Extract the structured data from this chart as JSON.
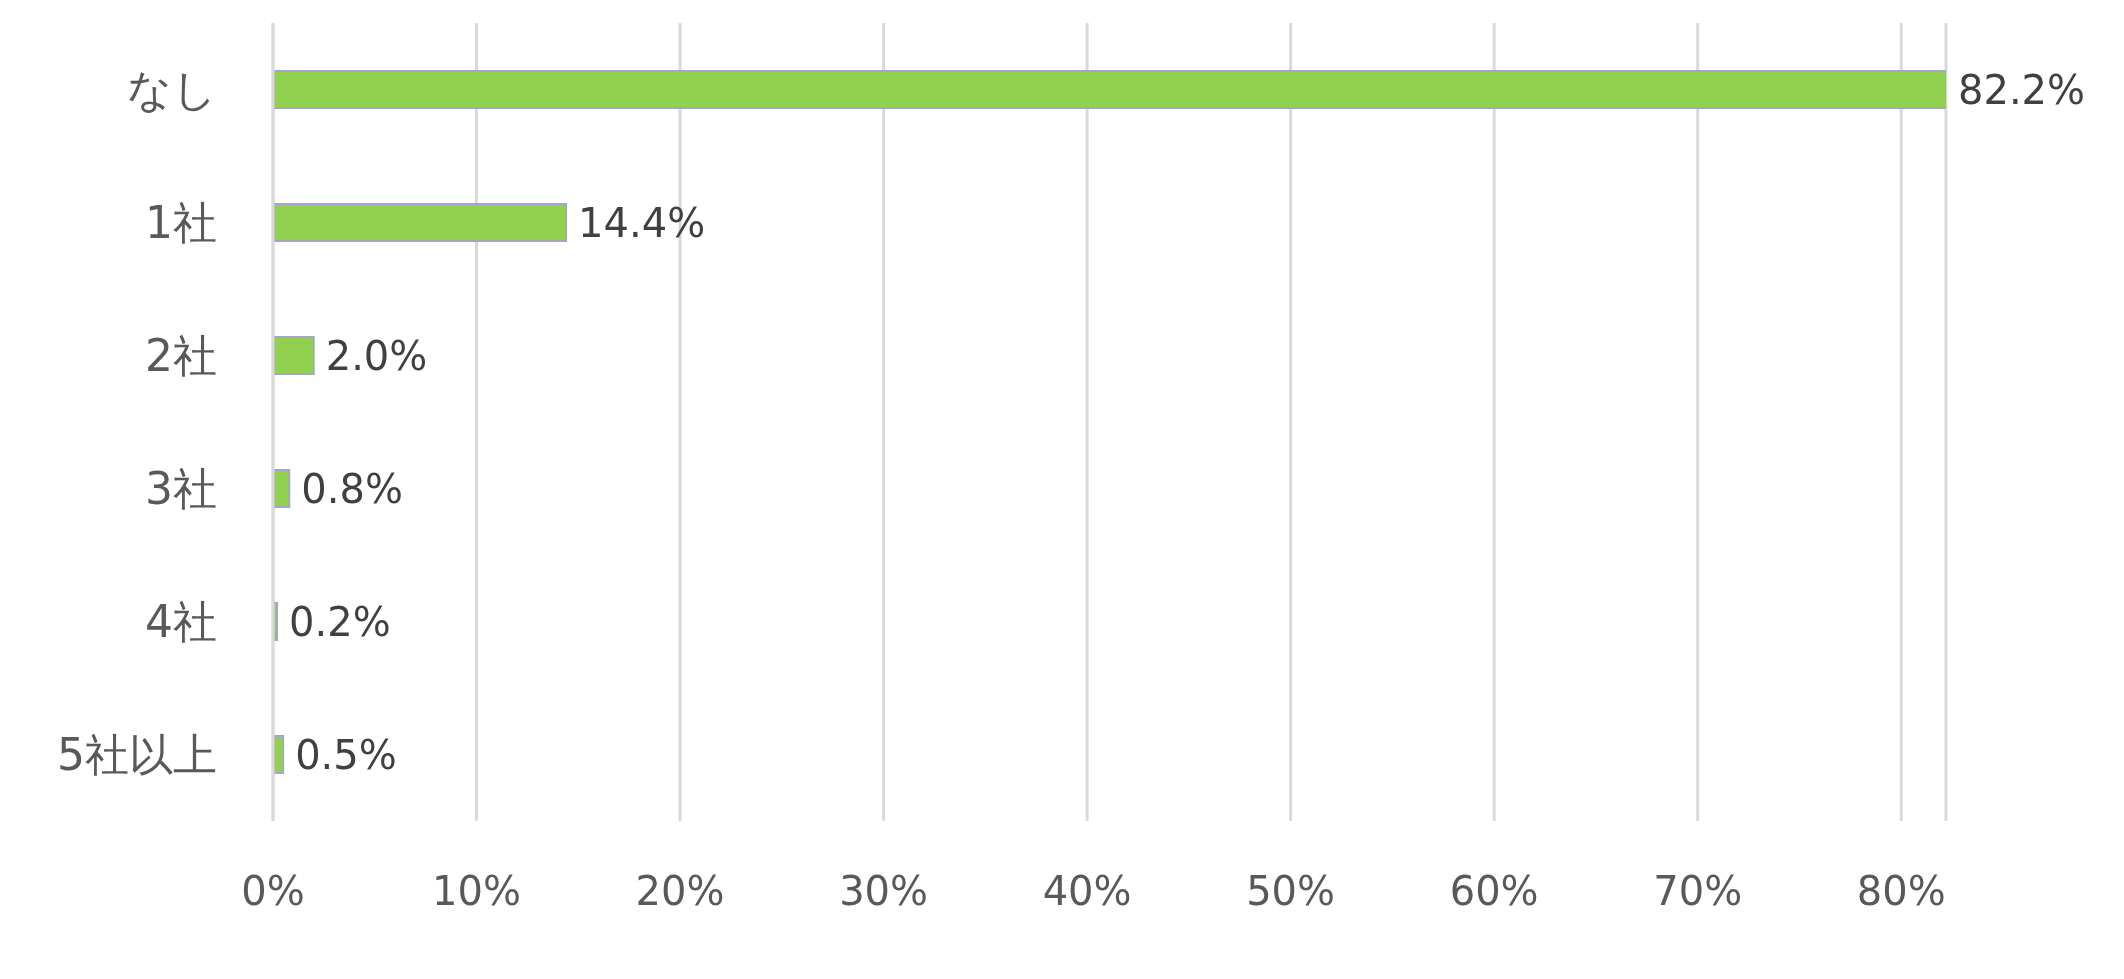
{
  "chart_data": {
    "type": "bar",
    "orientation": "horizontal",
    "categories": [
      "なし",
      "1社",
      "2社",
      "3社",
      "4社",
      "5社以上"
    ],
    "values": [
      82.2,
      14.4,
      2.0,
      0.8,
      0.2,
      0.5
    ],
    "value_labels": [
      "82.2%",
      "14.4%",
      "2.0%",
      "0.8%",
      "0.2%",
      "0.5%"
    ],
    "color": "#92d050",
    "xlim": [
      0,
      82.2
    ],
    "xticks": [
      {
        "value": 0,
        "label": "0%"
      },
      {
        "value": 10,
        "label": "10%"
      },
      {
        "value": 20,
        "label": "20%"
      },
      {
        "value": 30,
        "label": "30%"
      },
      {
        "value": 40,
        "label": "40%"
      },
      {
        "value": 50,
        "label": "50%"
      },
      {
        "value": 60,
        "label": "60%"
      },
      {
        "value": 70,
        "label": "70%"
      },
      {
        "value": 80,
        "label": "80%"
      }
    ],
    "grid": "x",
    "legend": false
  }
}
